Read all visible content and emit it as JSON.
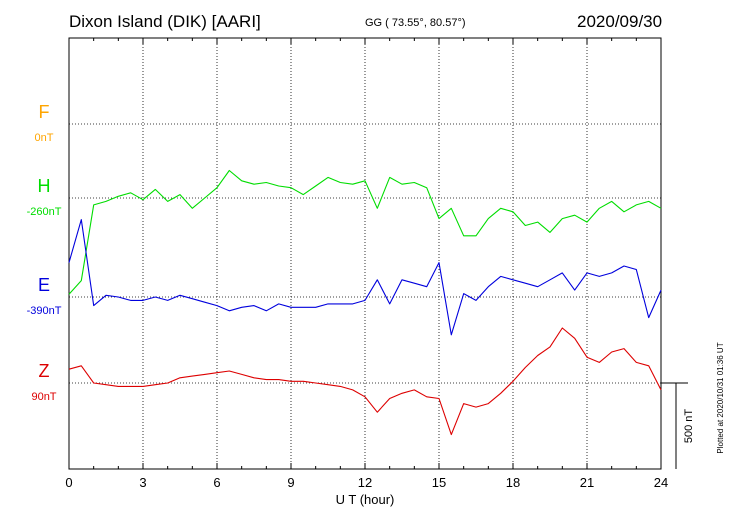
{
  "header": {
    "station": "Dixon Island (DIK)  [AARI]",
    "coords": "GG ( 73.55°,  80.57°)",
    "date": "2020/09/30"
  },
  "side_note": "Plotted at 2020/10/31 01:36 UT",
  "scale_label": "500 nT",
  "chart_data": {
    "type": "line",
    "xlabel": "U T (hour)",
    "xlim": [
      0,
      24
    ],
    "x_ticks": [
      "0",
      "3",
      "6",
      "9",
      "12",
      "15",
      "18",
      "21",
      "24"
    ],
    "scale_bar_nT": 500,
    "series": [
      {
        "name": "F",
        "baseline_label": "0nT",
        "color": "#FFA500",
        "x": [],
        "y": []
      },
      {
        "name": "H",
        "baseline_label": "-260nT",
        "color": "#00DD00",
        "x": [
          0,
          0.5,
          1,
          1.5,
          2,
          2.5,
          3,
          3.5,
          4,
          4.5,
          5,
          5.5,
          6,
          6.5,
          7,
          7.5,
          8,
          8.5,
          9,
          9.5,
          10,
          10.5,
          11,
          11.5,
          12,
          12.5,
          13,
          13.5,
          14,
          14.5,
          15,
          15.5,
          16,
          16.5,
          17,
          17.5,
          18,
          18.5,
          19,
          19.5,
          20,
          20.5,
          21,
          21.5,
          22,
          22.5,
          23,
          23.5,
          24
        ],
        "y": [
          -560,
          -480,
          -40,
          -20,
          10,
          30,
          -10,
          50,
          -20,
          20,
          -60,
          0,
          60,
          160,
          100,
          80,
          90,
          70,
          60,
          20,
          70,
          120,
          90,
          80,
          100,
          -60,
          120,
          80,
          90,
          60,
          -120,
          -60,
          -220,
          -220,
          -120,
          -60,
          -80,
          -160,
          -140,
          -200,
          -120,
          -100,
          -140,
          -60,
          -20,
          -80,
          -40,
          -20,
          -60
        ]
      },
      {
        "name": "E",
        "baseline_label": "-390nT",
        "color": "#0000DD",
        "x": [
          0,
          0.5,
          1,
          1.5,
          2,
          2.5,
          3,
          3.5,
          4,
          4.5,
          5,
          5.5,
          6,
          6.5,
          7,
          7.5,
          8,
          8.5,
          9,
          9.5,
          10,
          10.5,
          11,
          11.5,
          12,
          12.5,
          13,
          13.5,
          14,
          14.5,
          15,
          15.5,
          16,
          16.5,
          17,
          17.5,
          18,
          18.5,
          19,
          19.5,
          20,
          20.5,
          21,
          21.5,
          22,
          22.5,
          23,
          23.5,
          24
        ],
        "y": [
          200,
          450,
          -50,
          10,
          0,
          -20,
          -20,
          0,
          -20,
          10,
          -10,
          -30,
          -50,
          -80,
          -60,
          -50,
          -80,
          -40,
          -60,
          -60,
          -60,
          -40,
          -40,
          -40,
          -20,
          100,
          -40,
          100,
          80,
          60,
          200,
          -220,
          20,
          -20,
          60,
          120,
          100,
          80,
          60,
          100,
          140,
          40,
          140,
          120,
          140,
          180,
          160,
          -120,
          40
        ]
      },
      {
        "name": "Z",
        "baseline_label": "90nT",
        "color": "#DD0000",
        "x": [
          0,
          0.5,
          1,
          1.5,
          2,
          2.5,
          3,
          3.5,
          4,
          4.5,
          5,
          5.5,
          6,
          6.5,
          7,
          7.5,
          8,
          8.5,
          9,
          9.5,
          10,
          10.5,
          11,
          11.5,
          12,
          12.5,
          13,
          13.5,
          14,
          14.5,
          15,
          15.5,
          16,
          16.5,
          17,
          17.5,
          18,
          18.5,
          19,
          19.5,
          20,
          20.5,
          21,
          21.5,
          22,
          22.5,
          23,
          23.5,
          24
        ],
        "y": [
          80,
          100,
          0,
          -10,
          -20,
          -20,
          -20,
          -10,
          0,
          30,
          40,
          50,
          60,
          70,
          50,
          30,
          20,
          20,
          10,
          10,
          0,
          -10,
          -20,
          -40,
          -80,
          -170,
          -90,
          -60,
          -40,
          -80,
          -90,
          -300,
          -120,
          -140,
          -120,
          -60,
          10,
          90,
          160,
          210,
          320,
          260,
          150,
          120,
          180,
          200,
          120,
          100,
          -40
        ]
      }
    ]
  }
}
